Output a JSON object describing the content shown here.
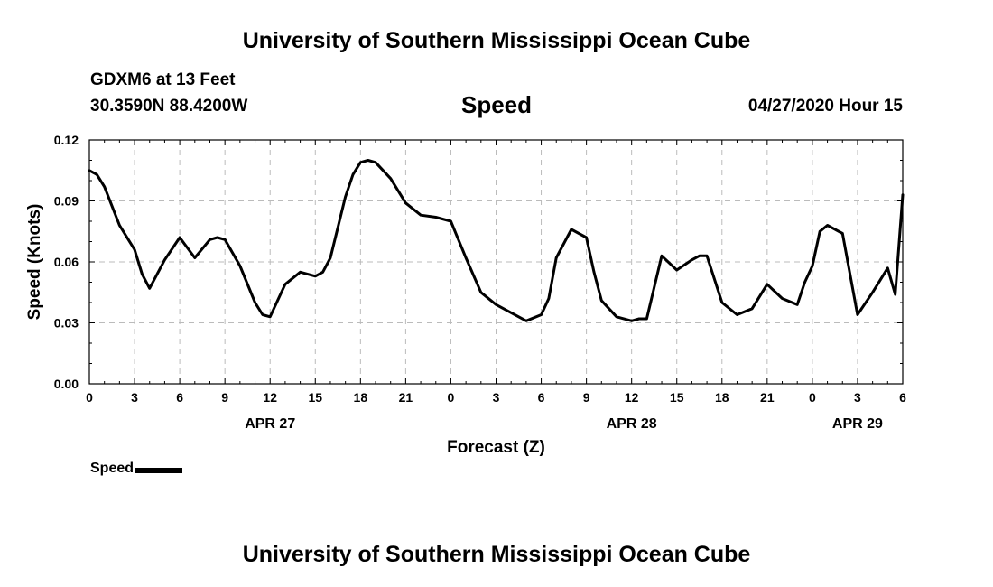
{
  "header": {
    "title": "University of Southern Mississippi Ocean Cube",
    "station": "GDXM6 at 13 Feet",
    "coordinates": "30.3590N 88.4200W",
    "variable": "Speed",
    "datetime": "04/27/2020 Hour 15"
  },
  "footer": {
    "title": "University of Southern Mississippi Ocean Cube"
  },
  "legend": {
    "label": "Speed"
  },
  "chart_data": {
    "type": "line",
    "xlabel": "Forecast (Z)",
    "ylabel": "Speed (Knots)",
    "ylim": [
      0,
      0.12
    ],
    "yticks": [
      "0.00",
      "0.03",
      "0.06",
      "0.09",
      "0.12"
    ],
    "xlim": [
      0,
      54
    ],
    "xticks": [
      "0",
      "3",
      "6",
      "9",
      "12",
      "15",
      "18",
      "21",
      "0",
      "3",
      "6",
      "9",
      "12",
      "15",
      "18",
      "21",
      "0",
      "3",
      "6"
    ],
    "date_labels": [
      {
        "label": "APR 27",
        "at": 12
      },
      {
        "label": "APR 28",
        "at": 36
      },
      {
        "label": "APR 29",
        "at": 51
      }
    ],
    "grid": true,
    "series": [
      {
        "name": "Speed",
        "color": "#000000",
        "x": [
          0,
          0.5,
          1,
          2,
          3,
          3.5,
          4,
          5,
          6,
          7,
          8,
          8.5,
          9,
          10,
          11,
          11.5,
          12,
          13,
          14,
          15,
          15.5,
          16,
          17,
          17.5,
          18,
          18.5,
          19,
          20,
          21,
          22,
          23,
          24,
          25,
          26,
          27,
          28,
          29,
          30,
          30.5,
          31,
          32,
          33,
          33.5,
          34,
          35,
          36,
          36.5,
          37,
          38,
          39,
          40,
          40.5,
          41,
          42,
          43,
          44,
          45,
          46,
          47,
          47.5,
          48,
          48.5,
          49,
          50,
          51,
          52,
          53,
          53.5,
          54
        ],
        "values": [
          0.105,
          0.103,
          0.097,
          0.078,
          0.066,
          0.054,
          0.047,
          0.061,
          0.072,
          0.062,
          0.071,
          0.072,
          0.071,
          0.058,
          0.04,
          0.034,
          0.033,
          0.049,
          0.055,
          0.053,
          0.055,
          0.062,
          0.092,
          0.103,
          0.109,
          0.11,
          0.109,
          0.101,
          0.089,
          0.083,
          0.082,
          0.08,
          0.062,
          0.045,
          0.039,
          0.035,
          0.031,
          0.034,
          0.042,
          0.062,
          0.076,
          0.072,
          0.055,
          0.041,
          0.033,
          0.031,
          0.032,
          0.032,
          0.063,
          0.056,
          0.061,
          0.063,
          0.063,
          0.04,
          0.034,
          0.037,
          0.049,
          0.042,
          0.039,
          0.05,
          0.058,
          0.075,
          0.078,
          0.074,
          0.034,
          0.045,
          0.057,
          0.044,
          0.093
        ]
      }
    ]
  }
}
